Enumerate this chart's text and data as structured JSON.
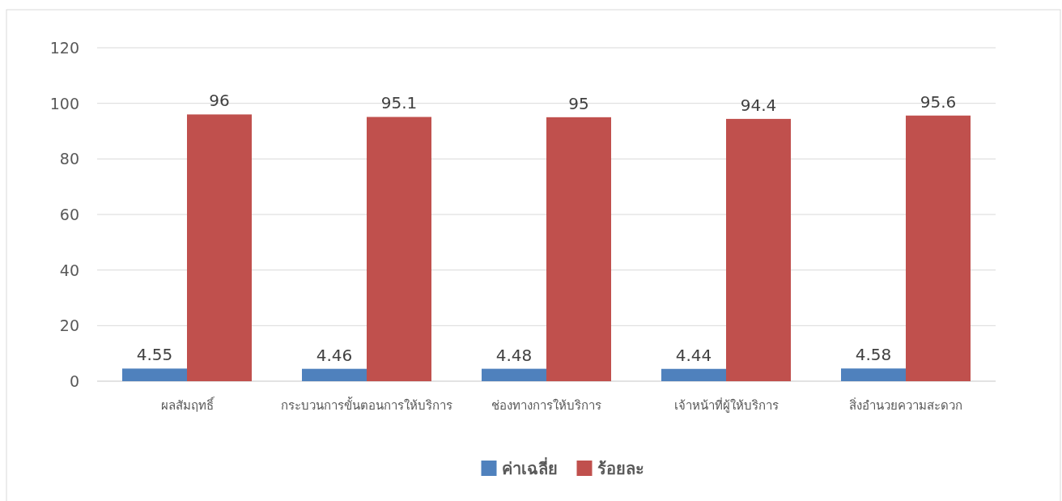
{
  "chart_data": {
    "type": "bar",
    "categories": [
      "ผลสัมฤทธิ์",
      "กระบวนการขั้นตอนการให้บริการ",
      "ช่องทางการให้บริการ",
      "เจ้าหน้าที่ผู้ให้บริการ",
      "สิ่งอำนวยความสะดวก"
    ],
    "series": [
      {
        "name": "ค่าเฉลี่ย",
        "color": "#4f81bd",
        "values": [
          4.55,
          4.46,
          4.48,
          4.44,
          4.58
        ]
      },
      {
        "name": "ร้อยละ",
        "color": "#c0504d",
        "values": [
          96,
          95.1,
          95,
          94.4,
          95.6
        ]
      }
    ],
    "ylim": [
      0,
      120
    ],
    "yticks": [
      0,
      20,
      40,
      60,
      80,
      100,
      120
    ],
    "grid": "y",
    "legend": "bottom",
    "data_labels": true
  }
}
